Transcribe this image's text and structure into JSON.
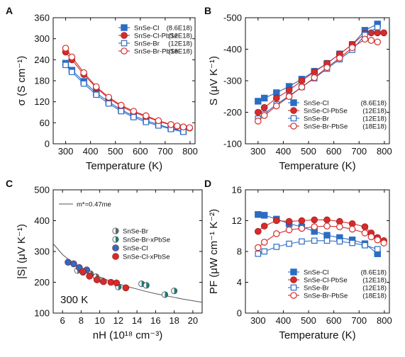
{
  "chart_data": [
    {
      "panel": "A",
      "type": "line",
      "xlabel": "Temperature (K)",
      "ylabel": "σ (S cm⁻¹)",
      "xlim": [
        250,
        820
      ],
      "ylim": [
        0,
        360
      ],
      "xticks": [
        300,
        400,
        500,
        600,
        700,
        800
      ],
      "yticks": [
        0,
        60,
        120,
        180,
        240,
        300,
        360
      ],
      "legend_position": "top-right",
      "series": [
        {
          "name": "SnSe-Cl",
          "note": "(8.6E18)",
          "marker": "square-filled",
          "color": "#2b6cc4",
          "x": [
            300,
            325,
            373,
            423,
            473,
            523,
            573,
            623,
            673,
            723,
            773
          ],
          "y": [
            230,
            210,
            178,
            145,
            120,
            97,
            80,
            66,
            55,
            44,
            35
          ]
        },
        {
          "name": "SnSe-Cl-PbSe",
          "note": "(12E18)",
          "marker": "circle-filled",
          "color": "#d62b2b",
          "x": [
            300,
            325,
            373,
            423,
            473,
            523,
            573,
            623,
            673,
            723,
            748,
            773,
            798
          ],
          "y": [
            262,
            240,
            198,
            160,
            130,
            107,
            90,
            78,
            64,
            54,
            50,
            48,
            45
          ]
        },
        {
          "name": "SnSe-Br",
          "note": "(12E18)",
          "marker": "square-open",
          "color": "#2b6cc4",
          "x": [
            300,
            325,
            373,
            423,
            473,
            523,
            573,
            623,
            673,
            723,
            773
          ],
          "y": [
            225,
            205,
            172,
            140,
            115,
            93,
            76,
            62,
            52,
            42,
            34
          ]
        },
        {
          "name": "SnSe-Br-PbSe",
          "note": "(18E18)",
          "marker": "circle-open",
          "color": "#d62b2b",
          "x": [
            300,
            325,
            373,
            423,
            473,
            523,
            573,
            623,
            673,
            723,
            748,
            773,
            798
          ],
          "y": [
            273,
            248,
            203,
            163,
            133,
            110,
            93,
            80,
            66,
            55,
            51,
            48,
            46
          ]
        }
      ]
    },
    {
      "panel": "B",
      "type": "line",
      "xlabel": "Temperature (K)",
      "ylabel": "S (μV K⁻¹)",
      "xlim": [
        250,
        820
      ],
      "ylim": [
        -100,
        -500
      ],
      "xticks": [
        300,
        400,
        500,
        600,
        700,
        800
      ],
      "yticks": [
        -100,
        -200,
        -300,
        -400,
        -500
      ],
      "legend_position": "bottom-right",
      "series": [
        {
          "name": "SnSe-Cl",
          "note": "(8.6E18)",
          "marker": "square-filled",
          "color": "#2b6cc4",
          "x": [
            300,
            325,
            373,
            423,
            473,
            523,
            573,
            623,
            673,
            723,
            773
          ],
          "y": [
            -235,
            -245,
            -262,
            -282,
            -305,
            -330,
            -355,
            -385,
            -415,
            -460,
            -480
          ]
        },
        {
          "name": "SnSe-Cl-PbSe",
          "note": "(12E18)",
          "marker": "circle-filled",
          "color": "#d62b2b",
          "x": [
            300,
            325,
            373,
            423,
            473,
            523,
            573,
            623,
            673,
            723,
            748,
            773,
            798
          ],
          "y": [
            -200,
            -215,
            -245,
            -270,
            -300,
            -328,
            -355,
            -385,
            -415,
            -450,
            -452,
            -452,
            -452
          ]
        },
        {
          "name": "SnSe-Br",
          "note": "(12E18)",
          "marker": "square-open",
          "color": "#2b6cc4",
          "x": [
            300,
            325,
            373,
            423,
            473,
            523,
            573,
            623,
            673,
            723,
            773
          ],
          "y": [
            -180,
            -195,
            -225,
            -252,
            -280,
            -308,
            -338,
            -368,
            -398,
            -445,
            -470
          ]
        },
        {
          "name": "SnSe-Br-PbSe",
          "note": "(18E18)",
          "marker": "circle-open",
          "color": "#d62b2b",
          "x": [
            300,
            325,
            373,
            423,
            473,
            523,
            573,
            623,
            673,
            723,
            748,
            773
          ],
          "y": [
            -172,
            -190,
            -220,
            -250,
            -280,
            -310,
            -342,
            -372,
            -405,
            -432,
            -428,
            -423
          ]
        }
      ]
    },
    {
      "panel": "C",
      "type": "scatter",
      "xlabel": "nH (10¹⁸ cm⁻³)",
      "ylabel": "|S| (μV K⁻¹)",
      "xlim": [
        5,
        21
      ],
      "ylim": [
        100,
        500
      ],
      "xticks": [
        6,
        8,
        10,
        12,
        14,
        16,
        18,
        20
      ],
      "yticks": [
        100,
        200,
        300,
        400,
        500
      ],
      "annotation": "300 K",
      "curve_label": "m*=0.47me",
      "curve": {
        "x": [
          5,
          6,
          7,
          8,
          9,
          10,
          11,
          12,
          13,
          14,
          15,
          16,
          17,
          18,
          19,
          20,
          21
        ],
        "y": [
          325,
          290,
          265,
          246,
          230,
          217,
          205,
          195,
          186,
          178,
          170,
          163,
          157,
          151,
          145,
          140,
          135
        ]
      },
      "legend_position": "center-right",
      "series": [
        {
          "name": "SnSe-Br",
          "marker": "split-circle",
          "color": "#666666",
          "x": [
            7.6,
            8.2,
            9.0,
            9.6,
            10.3
          ],
          "y": [
            238,
            232,
            228,
            218,
            205
          ]
        },
        {
          "name": "SnSe-Br-xPbSe",
          "marker": "split-circle-teal",
          "color": "#1e7a7a",
          "x": [
            12.0,
            14.5,
            15.0,
            17.0,
            18.0
          ],
          "y": [
            185,
            195,
            190,
            160,
            172
          ]
        },
        {
          "name": "SnSe-Cl",
          "marker": "circle-filled",
          "color": "#2b6cc4",
          "x": [
            6.6,
            7.2,
            7.8,
            8.6
          ],
          "y": [
            265,
            260,
            248,
            240
          ]
        },
        {
          "name": "SnSe-Cl-xPbSe",
          "marker": "circle-filled",
          "color": "#d62b2b",
          "x": [
            8.2,
            8.9,
            9.7,
            10.4,
            11.2,
            11.8,
            12.8
          ],
          "y": [
            235,
            220,
            208,
            202,
            200,
            198,
            182
          ]
        }
      ]
    },
    {
      "panel": "D",
      "type": "line",
      "xlabel": "Temperature (K)",
      "ylabel": "PF (μW cm⁻¹ K⁻²)",
      "xlim": [
        250,
        820
      ],
      "ylim": [
        0,
        16
      ],
      "xticks": [
        300,
        400,
        500,
        600,
        700,
        800
      ],
      "yticks": [
        0,
        4,
        8,
        12,
        16
      ],
      "legend_position": "bottom-right",
      "series": [
        {
          "name": "SnSe-Cl",
          "note": "(8.6E18)",
          "marker": "square-filled",
          "color": "#2b6cc4",
          "x": [
            300,
            325,
            373,
            423,
            473,
            523,
            573,
            623,
            673,
            723,
            773
          ],
          "y": [
            12.8,
            12.7,
            12.2,
            11.6,
            11.2,
            10.6,
            10.1,
            9.8,
            9.5,
            9.0,
            7.7
          ]
        },
        {
          "name": "SnSe-Cl-PbSe",
          "note": "(12E18)",
          "marker": "circle-filled",
          "color": "#d62b2b",
          "x": [
            300,
            325,
            373,
            423,
            473,
            523,
            573,
            623,
            673,
            723,
            748,
            773,
            798
          ],
          "y": [
            10.6,
            11.3,
            12.0,
            11.9,
            12.0,
            12.1,
            12.1,
            11.9,
            11.6,
            11.2,
            10.4,
            9.8,
            9.4
          ]
        },
        {
          "name": "SnSe-Br",
          "note": "(12E18)",
          "marker": "square-open",
          "color": "#2b6cc4",
          "x": [
            300,
            325,
            373,
            423,
            473,
            523,
            573,
            623,
            673,
            723,
            773
          ],
          "y": [
            7.7,
            8.0,
            8.6,
            9.0,
            9.3,
            9.4,
            9.4,
            9.3,
            9.1,
            8.8,
            8.3
          ]
        },
        {
          "name": "SnSe-Br-PbSe",
          "note": "(18E18)",
          "marker": "circle-open",
          "color": "#d62b2b",
          "x": [
            300,
            325,
            373,
            423,
            473,
            523,
            573,
            623,
            673,
            723,
            748,
            773,
            798
          ],
          "y": [
            8.5,
            9.2,
            10.3,
            10.8,
            11.0,
            11.2,
            11.3,
            11.2,
            10.9,
            10.4,
            9.9,
            9.5,
            9.1
          ]
        }
      ]
    }
  ]
}
